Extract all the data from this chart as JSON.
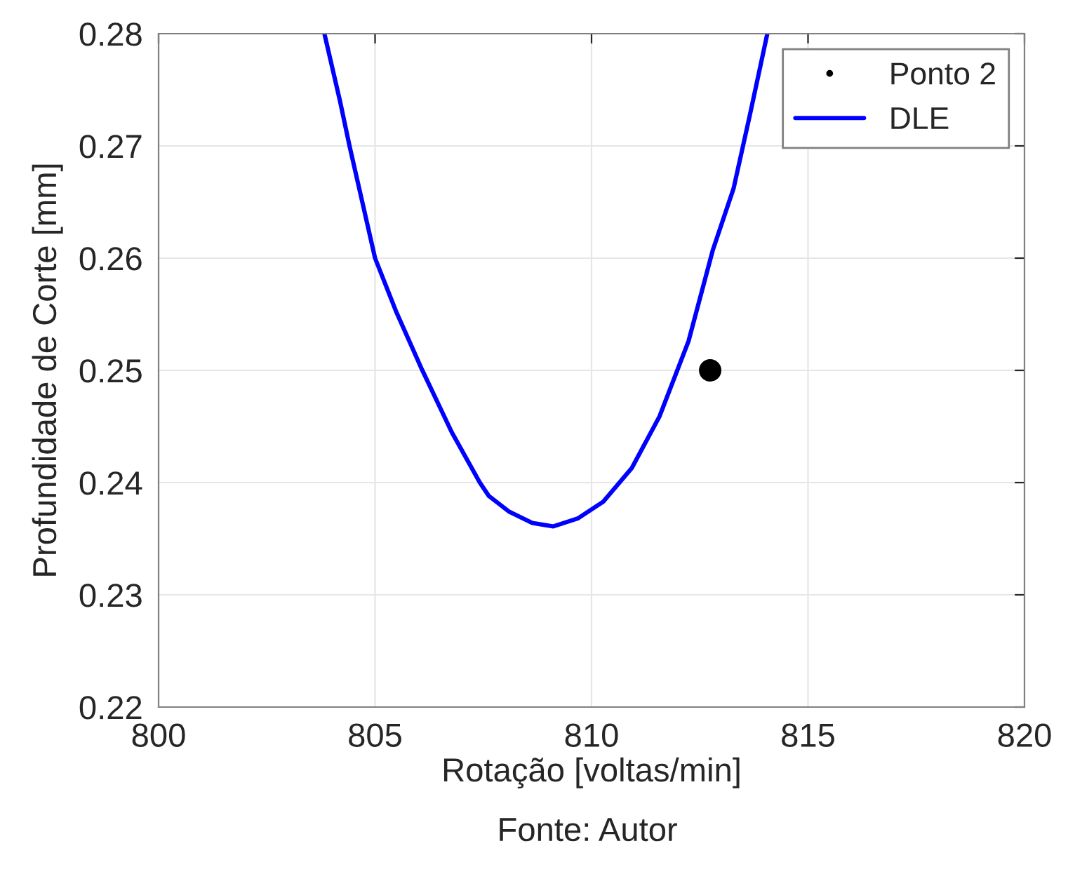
{
  "chart_data": {
    "type": "line",
    "xlabel": "Rotação [voltas/min]",
    "ylabel": "Profundidade de Corte [mm]",
    "xlim": [
      800,
      820
    ],
    "xticks": [
      800,
      805,
      810,
      815,
      820
    ],
    "ylim": [
      0.22,
      0.28
    ],
    "yticks": [
      0.22,
      0.23,
      0.24,
      0.25,
      0.26,
      0.27,
      0.28
    ],
    "grid": true,
    "legend": "top right",
    "annotations": [
      "Fonte: Autor"
    ],
    "series": [
      {
        "name": "Ponto 2",
        "type": "scatter",
        "marker": "circle",
        "color": "#000000",
        "x": [
          812.74
        ],
        "values": [
          0.25
        ]
      },
      {
        "name": "DLE",
        "color": "#0000ff",
        "x": [
          803.83,
          804.19,
          804.41,
          805.0,
          805.48,
          806.08,
          806.77,
          807.42,
          807.63,
          808.1,
          808.63,
          809.12,
          809.68,
          810.27,
          810.93,
          811.57,
          812.24,
          812.8,
          813.28,
          813.66,
          814.06
        ],
        "values": [
          0.28,
          0.274,
          0.27,
          0.26,
          0.2553,
          0.2501,
          0.2445,
          0.24,
          0.2388,
          0.2374,
          0.2364,
          0.2361,
          0.2368,
          0.2383,
          0.2413,
          0.2459,
          0.2526,
          0.2607,
          0.2662,
          0.2728,
          0.28
        ]
      }
    ]
  }
}
